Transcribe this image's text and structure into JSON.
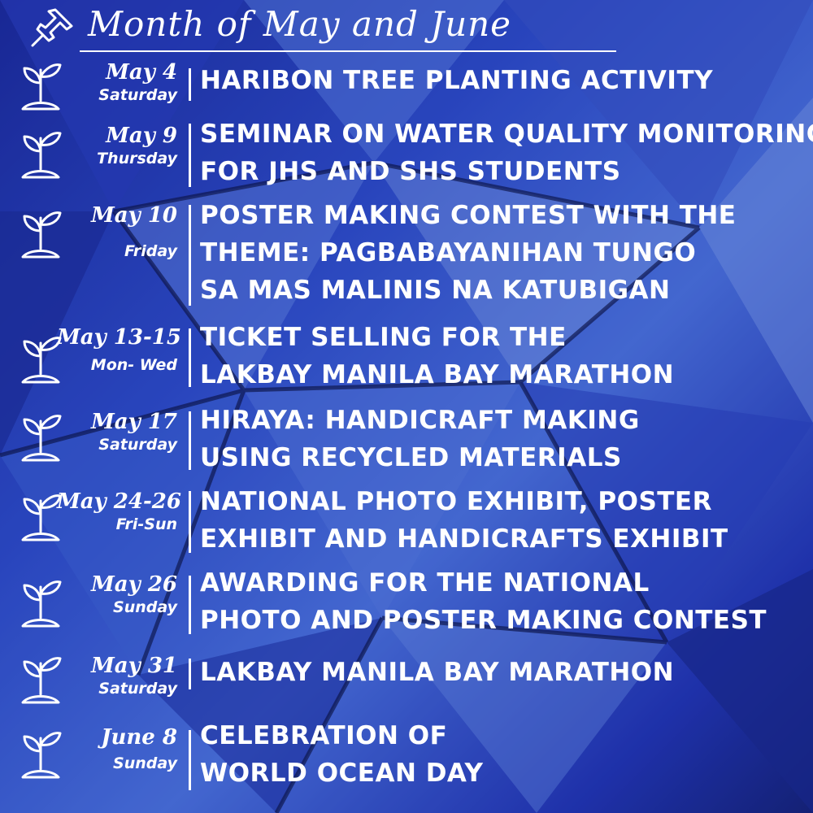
{
  "title": "Month of May and June",
  "icons": {
    "header": "push-pin-icon",
    "row": "seedling-icon"
  },
  "events": [
    {
      "date": "May 4",
      "day": "Saturday",
      "lines": [
        "Haribon Tree Planting Activity"
      ]
    },
    {
      "date": "May 9",
      "day": "Thursday",
      "lines": [
        "Seminar on Water Quality Monitoring",
        "for JHS and SHS students"
      ]
    },
    {
      "date": "May 10",
      "day": "Friday",
      "lines": [
        "Poster Making Contest with the",
        "Theme: Pagbabayanihan Tungo",
        "sa mas Malinis na Katubigan"
      ]
    },
    {
      "date": "May 13-15",
      "day": "Mon- Wed",
      "lines": [
        "Ticket selling for the",
        "Lakbay Manila Bay Marathon"
      ]
    },
    {
      "date": "May 17",
      "day": "Saturday",
      "lines": [
        "Hiraya: Handicraft Making",
        "using recycled materials"
      ]
    },
    {
      "date": "May 24-26",
      "day": "Fri-Sun",
      "lines": [
        "National Photo Exhibit, Poster",
        "Exhibit and Handicrafts Exhibit"
      ]
    },
    {
      "date": "May 26",
      "day": "Sunday",
      "lines": [
        "Awarding for the National",
        "Photo and Poster Making Contest"
      ]
    },
    {
      "date": "May 31",
      "day": "Saturday",
      "lines": [
        "Lakbay Manila Bay Marathon"
      ]
    },
    {
      "date": "June 8",
      "day": "Sunday",
      "lines": [
        "Celebration of",
        "World Ocean Day"
      ]
    }
  ]
}
